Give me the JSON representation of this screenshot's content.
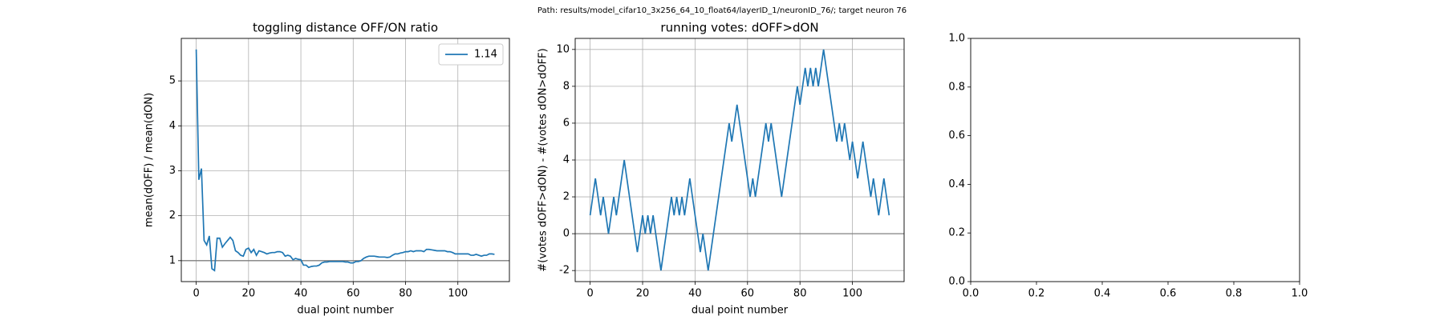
{
  "suptitle": "Path: results/model_cifar10_3x256_64_10_float64/layerID_1/neuronID_76/; target neuron 76",
  "chart_data": [
    {
      "type": "line",
      "title": "toggling distance OFF/ON ratio",
      "x_label": "dual point number",
      "y_label": "mean(dOFF) / mean(dON)",
      "x": [
        0,
        1,
        2,
        3,
        4,
        5,
        6,
        7,
        8,
        9,
        10,
        11,
        12,
        13,
        14,
        15,
        16,
        17,
        18,
        19,
        20,
        21,
        22,
        23,
        24,
        25,
        26,
        27,
        28,
        29,
        30,
        31,
        32,
        33,
        34,
        35,
        36,
        37,
        38,
        39,
        40,
        41,
        42,
        43,
        44,
        45,
        46,
        47,
        48,
        49,
        50,
        51,
        52,
        53,
        54,
        55,
        56,
        57,
        58,
        59,
        60,
        61,
        62,
        63,
        64,
        65,
        66,
        67,
        68,
        69,
        70,
        71,
        72,
        73,
        74,
        75,
        76,
        77,
        78,
        79,
        80,
        81,
        82,
        83,
        84,
        85,
        86,
        87,
        88,
        89,
        90,
        91,
        92,
        93,
        94,
        95,
        96,
        97,
        98,
        99,
        100,
        101,
        102,
        103,
        104,
        105,
        106,
        107,
        108,
        109,
        110,
        111,
        112,
        113,
        114
      ],
      "series": [
        {
          "name": "1.14",
          "color": "#1f77b4",
          "values": [
            5.7,
            2.8,
            3.05,
            1.45,
            1.35,
            1.55,
            0.82,
            0.78,
            1.5,
            1.5,
            1.3,
            1.38,
            1.45,
            1.52,
            1.45,
            1.22,
            1.18,
            1.12,
            1.1,
            1.25,
            1.28,
            1.18,
            1.25,
            1.12,
            1.22,
            1.2,
            1.18,
            1.15,
            1.17,
            1.18,
            1.18,
            1.2,
            1.2,
            1.18,
            1.1,
            1.12,
            1.1,
            1.02,
            1.05,
            1.03,
            1.02,
            0.9,
            0.9,
            0.85,
            0.87,
            0.88,
            0.88,
            0.9,
            0.95,
            0.97,
            0.97,
            0.98,
            0.98,
            0.98,
            0.98,
            0.98,
            0.98,
            0.97,
            0.97,
            0.95,
            0.95,
            0.98,
            0.98,
            1.0,
            1.05,
            1.08,
            1.1,
            1.1,
            1.1,
            1.09,
            1.08,
            1.08,
            1.08,
            1.07,
            1.08,
            1.12,
            1.15,
            1.15,
            1.17,
            1.18,
            1.2,
            1.2,
            1.22,
            1.2,
            1.22,
            1.22,
            1.22,
            1.2,
            1.25,
            1.25,
            1.24,
            1.23,
            1.22,
            1.22,
            1.22,
            1.22,
            1.2,
            1.2,
            1.18,
            1.15,
            1.15,
            1.15,
            1.15,
            1.15,
            1.15,
            1.12,
            1.12,
            1.14,
            1.12,
            1.1,
            1.12,
            1.12,
            1.15,
            1.15,
            1.14
          ]
        }
      ],
      "hline": 1,
      "xlim": [
        -5.7,
        119.7
      ],
      "ylim": [
        0.534,
        5.946
      ],
      "xticks": [
        0,
        20,
        40,
        60,
        80,
        100
      ],
      "yticks": [
        1,
        2,
        3,
        4,
        5
      ],
      "grid": true,
      "legend": "upper right"
    },
    {
      "type": "line",
      "title": "running votes: dOFF>dON",
      "x_label": "dual point number",
      "y_label": "#(votes dOFF>dON) - #(votes dON>dOFF)",
      "x": [
        0,
        1,
        2,
        3,
        4,
        5,
        6,
        7,
        8,
        9,
        10,
        11,
        12,
        13,
        14,
        15,
        16,
        17,
        18,
        19,
        20,
        21,
        22,
        23,
        24,
        25,
        26,
        27,
        28,
        29,
        30,
        31,
        32,
        33,
        34,
        35,
        36,
        37,
        38,
        39,
        40,
        41,
        42,
        43,
        44,
        45,
        46,
        47,
        48,
        49,
        50,
        51,
        52,
        53,
        54,
        55,
        56,
        57,
        58,
        59,
        60,
        61,
        62,
        63,
        64,
        65,
        66,
        67,
        68,
        69,
        70,
        71,
        72,
        73,
        74,
        75,
        76,
        77,
        78,
        79,
        80,
        81,
        82,
        83,
        84,
        85,
        86,
        87,
        88,
        89,
        90,
        91,
        92,
        93,
        94,
        95,
        96,
        97,
        98,
        99,
        100,
        101,
        102,
        103,
        104,
        105,
        106,
        107,
        108,
        109,
        110,
        111,
        112,
        113,
        114
      ],
      "color": "#1f77b4",
      "values": [
        1,
        2,
        3,
        2,
        1,
        2,
        1,
        0,
        1,
        2,
        1,
        2,
        3,
        4,
        3,
        2,
        1,
        0,
        -1,
        0,
        1,
        0,
        1,
        0,
        1,
        0,
        -1,
        -2,
        -1,
        0,
        1,
        2,
        1,
        2,
        1,
        2,
        1,
        2,
        3,
        2,
        1,
        0,
        -1,
        0,
        -1,
        -2,
        -1,
        0,
        1,
        2,
        3,
        4,
        5,
        6,
        5,
        6,
        7,
        6,
        5,
        4,
        3,
        2,
        3,
        2,
        3,
        4,
        5,
        6,
        5,
        6,
        5,
        4,
        3,
        2,
        3,
        4,
        5,
        6,
        7,
        8,
        7,
        8,
        9,
        8,
        9,
        8,
        9,
        8,
        9,
        10,
        9,
        8,
        7,
        6,
        5,
        6,
        5,
        6,
        5,
        4,
        5,
        4,
        3,
        4,
        5,
        4,
        3,
        2,
        3,
        2,
        1,
        2,
        3,
        2,
        1
      ],
      "hline": 0,
      "xlim": [
        -5.7,
        119.7
      ],
      "ylim": [
        -2.6,
        10.6
      ],
      "xticks": [
        0,
        20,
        40,
        60,
        80,
        100
      ],
      "yticks": [
        -2,
        0,
        2,
        4,
        6,
        8,
        10
      ],
      "grid": true
    },
    {
      "type": "line",
      "xlim": [
        0,
        1
      ],
      "ylim": [
        0,
        1
      ],
      "xticks": [
        {
          "value": 0,
          "label": "0.0"
        },
        {
          "value": 0.2,
          "label": "0.2"
        },
        {
          "value": 0.4,
          "label": "0.4"
        },
        {
          "value": 0.6,
          "label": "0.6"
        },
        {
          "value": 0.8,
          "label": "0.8"
        },
        {
          "value": 1,
          "label": "1.0"
        }
      ],
      "yticks": [
        {
          "value": 0,
          "label": "0.0"
        },
        {
          "value": 0.2,
          "label": "0.2"
        },
        {
          "value": 0.4,
          "label": "0.4"
        },
        {
          "value": 0.6,
          "label": "0.6"
        },
        {
          "value": 0.8,
          "label": "0.8"
        },
        {
          "value": 1,
          "label": "1.0"
        }
      ],
      "grid": false
    }
  ]
}
